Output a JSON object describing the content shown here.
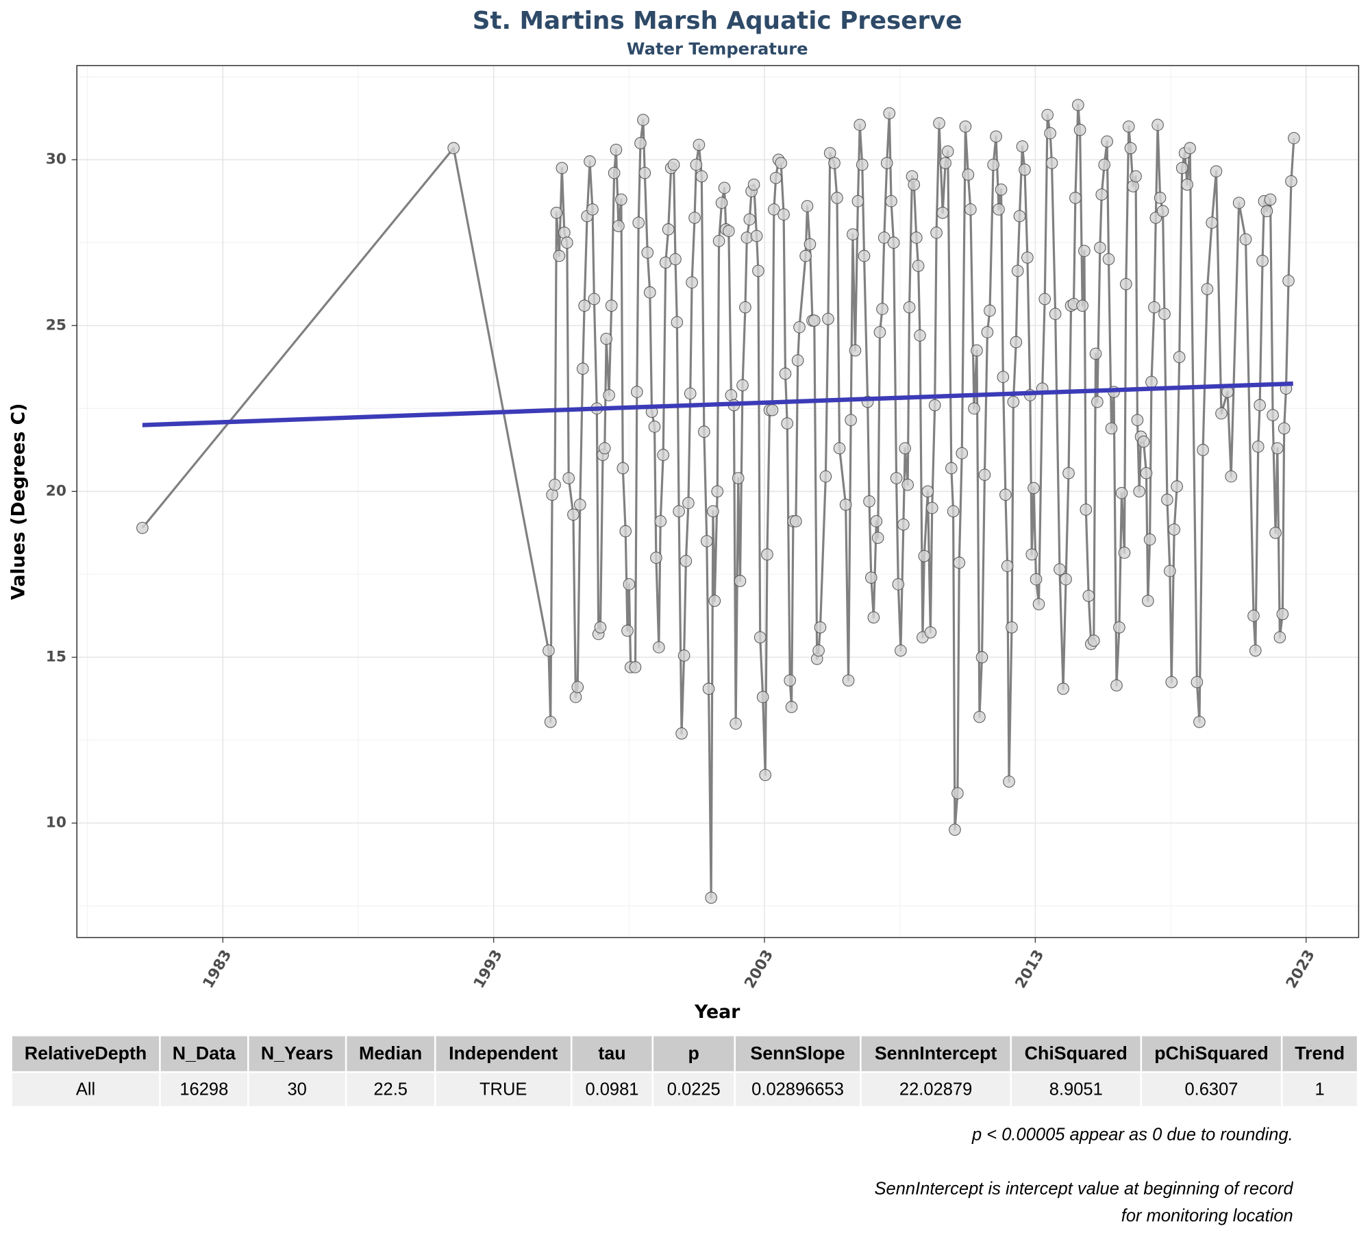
{
  "chart_data": {
    "type": "line",
    "title": "St. Martins Marsh Aquatic Preserve",
    "subtitle": "Water Temperature",
    "x_label": "Year",
    "y_label": "Values (Degrees C)",
    "xlim": [
      1977.61,
      2024.94
    ],
    "ylim": [
      6.55,
      32.84
    ],
    "xticks": [
      1983,
      1993,
      2003,
      2013,
      2023
    ],
    "yticks": [
      10,
      15,
      20,
      25,
      30
    ],
    "xminorticks": [
      1978,
      1988,
      1998,
      2008,
      2018
    ],
    "yminorticks": [
      7.5,
      12.5,
      17.5,
      22.5,
      27.5,
      32.5
    ],
    "grid": true,
    "color": "#808080",
    "point_color": "#d3d3d3",
    "x": [
      1980.03,
      1991.52,
      1995.03,
      1995.1,
      1995.16,
      1995.26,
      1995.32,
      1995.42,
      1995.52,
      1995.61,
      1995.71,
      1995.77,
      1995.94,
      1996.03,
      1996.1,
      1996.19,
      1996.29,
      1996.35,
      1996.45,
      1996.55,
      1996.65,
      1996.71,
      1996.81,
      1996.87,
      1996.94,
      1997.03,
      1997.1,
      1997.16,
      1997.26,
      1997.35,
      1997.45,
      1997.52,
      1997.61,
      1997.71,
      1997.77,
      1997.87,
      1997.94,
      1998.0,
      1998.06,
      1998.23,
      1998.29,
      1998.35,
      1998.42,
      1998.52,
      1998.58,
      1998.68,
      1998.77,
      1998.84,
      1998.94,
      1999.0,
      1999.1,
      1999.16,
      1999.26,
      1999.35,
      1999.45,
      1999.55,
      1999.65,
      1999.71,
      1999.77,
      1999.84,
      1999.94,
      2000.03,
      2000.1,
      2000.19,
      2000.26,
      2000.32,
      2000.42,
      2000.48,
      2000.58,
      2000.68,
      2000.77,
      2000.87,
      2000.94,
      2001.03,
      2001.1,
      2001.16,
      2001.26,
      2001.32,
      2001.42,
      2001.52,
      2001.58,
      2001.68,
      2001.77,
      2001.87,
      2001.94,
      2002.03,
      2002.1,
      2002.19,
      2002.29,
      2002.35,
      2002.45,
      2002.52,
      2002.61,
      2002.71,
      2002.77,
      2002.84,
      2002.94,
      2003.03,
      2003.1,
      2003.19,
      2003.29,
      2003.35,
      2003.42,
      2003.52,
      2003.61,
      2003.71,
      2003.77,
      2003.84,
      2003.94,
      2004.0,
      2004.06,
      2004.16,
      2004.23,
      2004.29,
      2004.52,
      2004.58,
      2004.68,
      2004.77,
      2004.84,
      2004.94,
      2005.0,
      2005.06,
      2005.26,
      2005.35,
      2005.42,
      2005.58,
      2005.68,
      2005.77,
      2006.0,
      2006.1,
      2006.19,
      2006.26,
      2006.35,
      2006.45,
      2006.52,
      2006.61,
      2006.68,
      2006.81,
      2006.87,
      2006.94,
      2007.03,
      2007.13,
      2007.19,
      2007.26,
      2007.35,
      2007.42,
      2007.52,
      2007.61,
      2007.68,
      2007.77,
      2007.87,
      2007.94,
      2008.03,
      2008.13,
      2008.19,
      2008.29,
      2008.35,
      2008.45,
      2008.52,
      2008.61,
      2008.68,
      2008.74,
      2008.84,
      2008.9,
      2009.03,
      2009.13,
      2009.19,
      2009.29,
      2009.35,
      2009.45,
      2009.58,
      2009.68,
      2009.77,
      2009.9,
      2009.97,
      2010.03,
      2010.13,
      2010.19,
      2010.29,
      2010.42,
      2010.52,
      2010.61,
      2010.74,
      2010.84,
      2010.94,
      2011.03,
      2011.13,
      2011.23,
      2011.32,
      2011.45,
      2011.55,
      2011.65,
      2011.74,
      2011.81,
      2011.9,
      2011.97,
      2012.03,
      2012.13,
      2012.19,
      2012.29,
      2012.35,
      2012.42,
      2012.52,
      2012.61,
      2012.71,
      2012.81,
      2012.87,
      2012.94,
      2013.03,
      2013.13,
      2013.26,
      2013.35,
      2013.45,
      2013.55,
      2013.61,
      2013.74,
      2013.9,
      2014.03,
      2014.13,
      2014.23,
      2014.32,
      2014.42,
      2014.48,
      2014.58,
      2014.65,
      2014.74,
      2014.81,
      2014.87,
      2014.97,
      2015.06,
      2015.16,
      2015.23,
      2015.29,
      2015.39,
      2015.45,
      2015.55,
      2015.65,
      2015.71,
      2015.81,
      2015.9,
      2016.0,
      2016.1,
      2016.19,
      2016.29,
      2016.35,
      2016.45,
      2016.52,
      2016.61,
      2016.71,
      2016.77,
      2016.84,
      2016.9,
      2017.0,
      2017.1,
      2017.16,
      2017.23,
      2017.29,
      2017.39,
      2017.45,
      2017.52,
      2017.61,
      2017.71,
      2017.77,
      2017.87,
      2017.97,
      2018.03,
      2018.13,
      2018.23,
      2018.32,
      2018.42,
      2018.52,
      2018.61,
      2018.71,
      2018.97,
      2019.06,
      2019.19,
      2019.35,
      2019.52,
      2019.68,
      2019.87,
      2020.1,
      2020.23,
      2020.52,
      2020.77,
      2021.06,
      2021.13,
      2021.23,
      2021.29,
      2021.39,
      2021.45,
      2021.55,
      2021.68,
      2021.77,
      2021.87,
      2021.94,
      2022.03,
      2022.13,
      2022.19,
      2022.26,
      2022.35,
      2022.45,
      2022.55
    ],
    "values": [
      18.9,
      30.35,
      15.2,
      13.05,
      19.9,
      20.2,
      28.4,
      27.1,
      29.75,
      27.8,
      27.5,
      20.4,
      19.3,
      13.8,
      14.1,
      19.6,
      23.7,
      25.6,
      28.3,
      29.95,
      28.5,
      25.8,
      22.5,
      15.7,
      15.9,
      21.1,
      21.3,
      24.6,
      22.9,
      25.6,
      29.6,
      30.3,
      28.0,
      28.8,
      20.7,
      18.8,
      15.8,
      17.2,
      14.7,
      14.7,
      23.0,
      28.1,
      30.5,
      31.2,
      29.6,
      27.2,
      26.0,
      22.4,
      21.95,
      18.0,
      15.3,
      19.1,
      21.1,
      26.9,
      27.9,
      29.75,
      29.85,
      27.0,
      25.1,
      19.4,
      12.7,
      15.05,
      17.9,
      19.65,
      22.95,
      26.3,
      28.25,
      29.85,
      30.45,
      29.5,
      21.8,
      18.5,
      14.05,
      7.75,
      19.4,
      16.7,
      20.0,
      27.55,
      28.7,
      29.15,
      27.9,
      27.85,
      22.9,
      22.6,
      13.0,
      20.4,
      17.3,
      23.2,
      25.55,
      27.65,
      28.2,
      29.05,
      29.25,
      27.7,
      26.65,
      15.6,
      13.8,
      11.45,
      18.1,
      22.45,
      22.45,
      28.5,
      29.45,
      30.0,
      29.9,
      28.35,
      23.55,
      22.05,
      14.3,
      13.5,
      19.1,
      19.1,
      23.95,
      24.95,
      27.1,
      28.6,
      27.45,
      25.15,
      25.15,
      14.95,
      15.2,
      15.9,
      20.45,
      25.2,
      30.2,
      29.9,
      28.85,
      21.3,
      19.6,
      14.3,
      22.15,
      27.75,
      24.25,
      28.75,
      31.05,
      29.85,
      27.1,
      22.7,
      19.7,
      17.4,
      16.2,
      19.1,
      18.6,
      24.8,
      25.5,
      27.65,
      29.9,
      31.4,
      28.75,
      27.5,
      20.4,
      17.2,
      15.2,
      19.0,
      21.3,
      20.2,
      25.55,
      29.5,
      29.25,
      27.65,
      26.8,
      24.7,
      15.6,
      18.05,
      20.0,
      15.75,
      19.5,
      22.6,
      27.8,
      31.1,
      28.4,
      29.9,
      30.25,
      20.7,
      19.4,
      9.8,
      10.9,
      17.85,
      21.15,
      31.0,
      29.55,
      28.5,
      22.5,
      24.25,
      13.2,
      15.0,
      20.5,
      24.8,
      25.45,
      29.85,
      30.7,
      28.5,
      29.1,
      23.45,
      19.9,
      17.75,
      11.25,
      15.9,
      22.7,
      24.5,
      26.65,
      28.3,
      30.4,
      29.7,
      27.05,
      22.9,
      18.1,
      20.1,
      17.35,
      16.6,
      23.1,
      25.8,
      31.35,
      30.8,
      29.9,
      25.35,
      17.65,
      14.05,
      17.35,
      20.55,
      25.6,
      25.65,
      28.85,
      31.65,
      30.9,
      25.6,
      27.25,
      19.45,
      16.85,
      15.4,
      15.5,
      24.15,
      22.7,
      27.35,
      28.95,
      29.85,
      30.55,
      27.0,
      21.9,
      23.0,
      14.15,
      15.9,
      19.95,
      18.15,
      26.25,
      31.0,
      30.35,
      29.2,
      29.5,
      22.15,
      20.0,
      21.65,
      21.5,
      20.55,
      16.7,
      18.55,
      23.3,
      25.55,
      28.25,
      31.05,
      28.85,
      28.45,
      25.35,
      19.75,
      17.6,
      14.25,
      18.85,
      20.15,
      24.05,
      29.75,
      30.2,
      29.25,
      30.35,
      14.25,
      13.05,
      21.25,
      26.1,
      28.1,
      29.65,
      22.35,
      23.0,
      20.45,
      28.7,
      27.6,
      16.25,
      15.2,
      21.35,
      22.6,
      26.95,
      28.75,
      28.45,
      28.8,
      22.3,
      18.75,
      21.3,
      15.6,
      16.3,
      21.9,
      23.1,
      26.35,
      29.35,
      30.65
    ],
    "trend": {
      "x": [
        1980.03,
        2022.52
      ],
      "values": [
        22.0,
        23.25
      ],
      "color": "#3b3bb8"
    }
  },
  "table": {
    "columns": [
      "RelativeDepth",
      "N_Data",
      "N_Years",
      "Median",
      "Independent",
      "tau",
      "p",
      "SennSlope",
      "SennIntercept",
      "ChiSquared",
      "pChiSquared",
      "Trend"
    ],
    "rows": [
      [
        "All",
        "16298",
        "30",
        "22.5",
        "TRUE",
        "0.0981",
        "0.0225",
        "0.02896653",
        "22.02879",
        "8.9051",
        "0.6307",
        "1"
      ]
    ]
  },
  "notes": [
    "p < 0.00005 appear as 0 due to rounding.",
    "SennIntercept is intercept value at beginning of record for monitoring location"
  ]
}
